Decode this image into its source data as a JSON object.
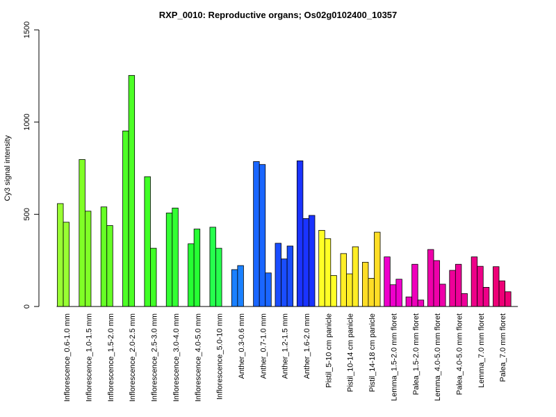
{
  "chart_data": {
    "type": "bar",
    "title": "RXP_0010: Reproductive organs; Os02g0102400_10357",
    "xlabel": "",
    "ylabel": "Cy3 signal intensity",
    "ylim": [
      0,
      1500
    ],
    "yticks": [
      0,
      500,
      1000,
      1500
    ],
    "grid": false,
    "groups": [
      {
        "label": "Inflorescence_0.6-1.0 mm",
        "color": "#99FF33",
        "values": [
          558,
          457
        ]
      },
      {
        "label": "Inflorescence_1.0-1.5 mm",
        "color": "#80FF26",
        "values": [
          797,
          517
        ]
      },
      {
        "label": "Inflorescence_1.5-2.0 mm",
        "color": "#66FF26",
        "values": [
          540,
          439
        ]
      },
      {
        "label": "Inflorescence_2.0-2.5 mm",
        "color": "#4DFF26",
        "values": [
          952,
          1253
        ]
      },
      {
        "label": "Inflorescence_2.5-3.0 mm",
        "color": "#40FF26",
        "values": [
          704,
          316
        ]
      },
      {
        "label": "Inflorescence_3.0-4.0 mm",
        "color": "#33FF33",
        "values": [
          507,
          534
        ]
      },
      {
        "label": "Inflorescence_4.0-5.0 mm",
        "color": "#26FF33",
        "values": [
          340,
          420
        ]
      },
      {
        "label": "Inflorescence_5.0-10 mm",
        "color": "#26FF4D",
        "values": [
          430,
          316
        ]
      },
      {
        "label": "Anther_0.3-0.6 mm",
        "color": "#1A80FF",
        "values": [
          200,
          222
        ]
      },
      {
        "label": "Anther_0.7-1.0 mm",
        "color": "#1A66FF",
        "values": [
          786,
          770,
          182
        ]
      },
      {
        "label": "Anther_1.2-1.5 mm",
        "color": "#1A4DFF",
        "values": [
          343,
          258,
          328
        ]
      },
      {
        "label": "Anther_1.6-2.0 mm",
        "color": "#1A33FF",
        "values": [
          790,
          477,
          494
        ]
      },
      {
        "label": "Pistil_5-10 cm panicle",
        "color": "#FFFF26",
        "values": [
          413,
          368,
          168
        ]
      },
      {
        "label": "Pistil_10-14 cm panicle",
        "color": "#FFEE26",
        "values": [
          287,
          177,
          324
        ]
      },
      {
        "label": "Pistil_14-18 cm panicle",
        "color": "#FFDD26",
        "values": [
          240,
          153,
          403
        ]
      },
      {
        "label": "Lemma_1.5-2.0 mm floret",
        "color": "#EE00CC",
        "values": [
          269,
          118,
          148
        ]
      },
      {
        "label": "Palea_1.5-2.0 mm floret",
        "color": "#EE00BB",
        "values": [
          52,
          229,
          35
        ]
      },
      {
        "label": "Lemma_4.0-5.0 mm floret",
        "color": "#EE00AA",
        "values": [
          309,
          249,
          121
        ]
      },
      {
        "label": "Palea_4.0-5.0 mm floret",
        "color": "#EE0099",
        "values": [
          196,
          229,
          70
        ]
      },
      {
        "label": "Lemma_7.0 mm floret",
        "color": "#EE0088",
        "values": [
          269,
          218,
          104
        ]
      },
      {
        "label": "Palea_7.0 mm floret",
        "color": "#EE0077",
        "values": [
          216,
          139,
          80
        ]
      }
    ]
  }
}
